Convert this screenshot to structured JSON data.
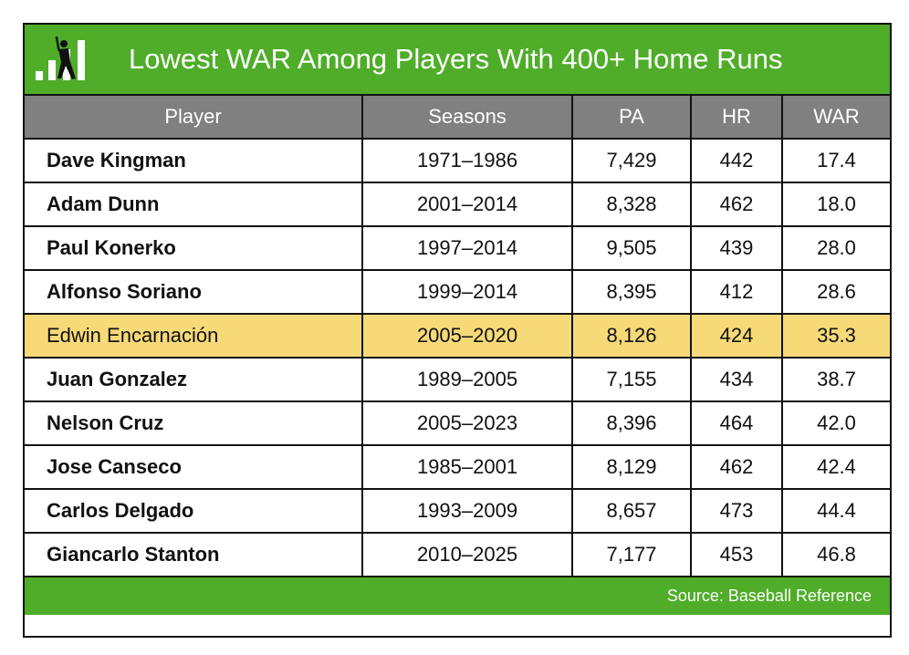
{
  "title": "Lowest WAR Among Players With 400+ Home Runs",
  "logo_icon": "batter-bar-chart-icon",
  "columns": [
    "Player",
    "Seasons",
    "PA",
    "HR",
    "WAR"
  ],
  "highlight_player": "Edwin Encarnación",
  "colors": {
    "brand_green": "#4fad29",
    "header_gray": "#808080",
    "highlight": "#f6da78"
  },
  "rows": [
    [
      "Dave Kingman",
      "1971–1986",
      "7,429",
      "442",
      "17.4"
    ],
    [
      "Adam Dunn",
      "2001–2014",
      "8,328",
      "462",
      "18.0"
    ],
    [
      "Paul Konerko",
      "1997–2014",
      "9,505",
      "439",
      "28.0"
    ],
    [
      "Alfonso Soriano",
      "1999–2014",
      "8,395",
      "412",
      "28.6"
    ],
    [
      "Edwin Encarnación",
      "2005–2020",
      "8,126",
      "424",
      "35.3"
    ],
    [
      "Juan Gonzalez",
      "1989–2005",
      "7,155",
      "434",
      "38.7"
    ],
    [
      "Nelson Cruz",
      "2005–2023",
      "8,396",
      "464",
      "42.0"
    ],
    [
      "Jose Canseco",
      "1985–2001",
      "8,129",
      "462",
      "42.4"
    ],
    [
      "Carlos Delgado",
      "1993–2009",
      "8,657",
      "473",
      "44.4"
    ],
    [
      "Giancarlo Stanton",
      "2010–2025",
      "7,177",
      "453",
      "46.8"
    ]
  ],
  "footer": "Source: Baseball Reference"
}
